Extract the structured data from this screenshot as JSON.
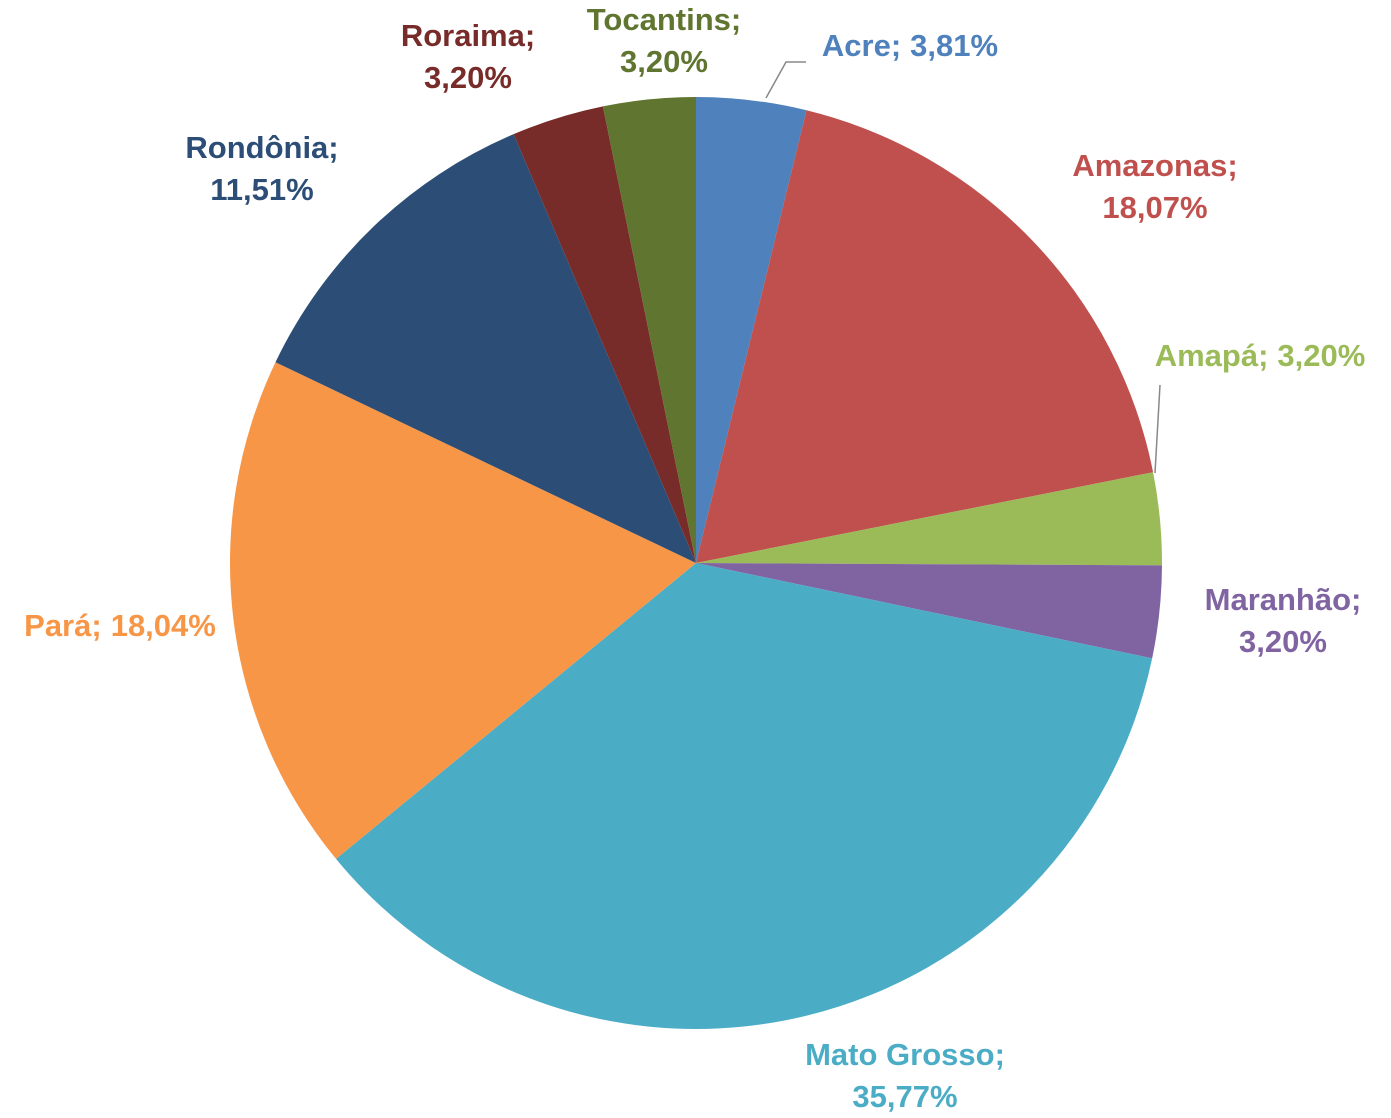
{
  "chart_data": {
    "type": "pie",
    "categories": [
      "Acre",
      "Amazonas",
      "Amapá",
      "Maranhão",
      "Mato Grosso",
      "Pará",
      "Rondônia",
      "Roraima",
      "Tocantins"
    ],
    "values": [
      3.81,
      18.07,
      3.2,
      3.2,
      35.77,
      18.04,
      11.51,
      3.2,
      3.2
    ],
    "value_labels": [
      "3,81%",
      "18,07%",
      "3,20%",
      "3,20%",
      "35,77%",
      "18,04%",
      "11,51%",
      "3,20%",
      "3,20%"
    ],
    "label_separator": ";",
    "colors": [
      "#4f81bd",
      "#c0504d",
      "#9bbb59",
      "#8064a2",
      "#4bacc6",
      "#f79646",
      "#2c4d75",
      "#772c2a",
      "#5f7530"
    ]
  }
}
